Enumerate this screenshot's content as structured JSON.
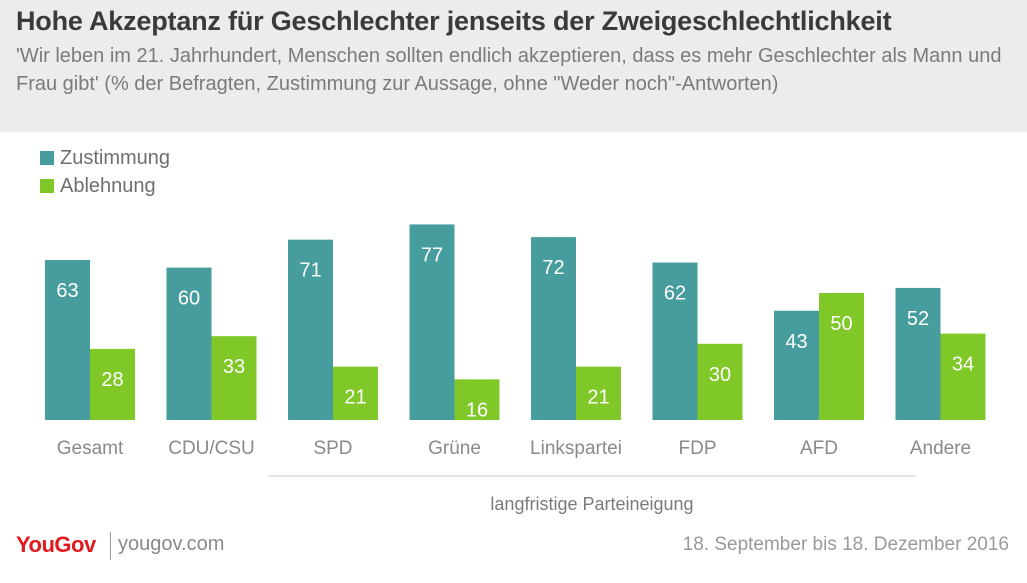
{
  "header": {
    "title": "Hohe Akzeptanz für Geschlechter jenseits der Zweigeschlechtlichkeit",
    "subtitle": "'Wir leben im 21. Jahrhundert, Menschen sollten endlich akzeptieren, dass es mehr Geschlechter als Mann und Frau gibt' (% der Befragten, Zustimmung zur Aussage, ohne \"Weder noch\"-Antworten)"
  },
  "colors": {
    "zustimmung": "#479d9e",
    "ablehnung": "#80c827"
  },
  "chart_data": {
    "type": "bar",
    "categories": [
      "Gesamt",
      "CDU/CSU",
      "SPD",
      "Grüne",
      "Linkspartei",
      "FDP",
      "AFD",
      "Andere"
    ],
    "series": [
      {
        "name": "Zustimmung",
        "values": [
          63,
          60,
          71,
          77,
          72,
          62,
          43,
          52
        ]
      },
      {
        "name": "Ablehnung",
        "values": [
          28,
          33,
          21,
          16,
          21,
          30,
          50,
          34
        ]
      }
    ],
    "title": "Hohe Akzeptanz für Geschlechter jenseits der Zweigeschlechtlichkeit",
    "xlabel": "",
    "ylabel": "",
    "ylim": [
      0,
      80
    ],
    "legend": "top-left",
    "grid": false,
    "group_label": "langfristige Parteineigung"
  },
  "footer": {
    "logo": "YouGov",
    "url": "yougov.com",
    "date": "18. September bis 18. Dezember 2016"
  }
}
